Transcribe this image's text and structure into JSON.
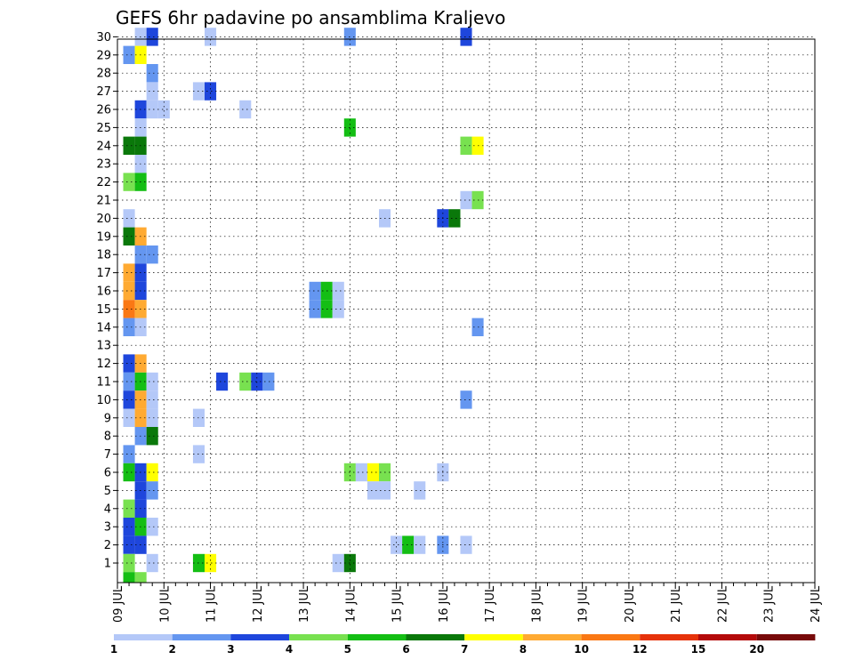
{
  "chart_data": {
    "type": "heatmap",
    "title": "GEFS 6hr padavine po ansamblima Kraljevo",
    "x_labels": [
      "09 JUL",
      "10 JUL",
      "11 JUL",
      "12 JUL",
      "13 JUL",
      "14 JUL",
      "15 JUL",
      "16 JUL",
      "17 JUL",
      "18 JUL",
      "19 JUL",
      "20 JUL",
      "21 JUL",
      "22 JUL",
      "23 JUL",
      "24 JUL"
    ],
    "y_labels": [
      "1",
      "2",
      "3",
      "4",
      "5",
      "6",
      "7",
      "8",
      "9",
      "10",
      "11",
      "12",
      "13",
      "14",
      "15",
      "16",
      "17",
      "18",
      "19",
      "20",
      "21",
      "22",
      "23",
      "24",
      "25",
      "26",
      "27",
      "28",
      "29",
      "30"
    ],
    "ylabel": "",
    "xlabel": "",
    "x_unit": "6-hour step from 09 JUL 00Z",
    "grid": true,
    "colorbar": {
      "labels": [
        "1",
        "2",
        "3",
        "4",
        "5",
        "6",
        "7",
        "8",
        "10",
        "12",
        "15",
        "20"
      ],
      "colors": [
        "#b4c8f8",
        "#6496f0",
        "#1e46dc",
        "#78e150",
        "#14be14",
        "#0a780a",
        "#ffff00",
        "#ffaa32",
        "#fa7814",
        "#e6320a",
        "#b40a0a",
        "#780a0a"
      ]
    },
    "cells": [
      {
        "member": 30,
        "step": 2,
        "value": 1.5
      },
      {
        "member": 30,
        "step": 3,
        "value": 3.5
      },
      {
        "member": 30,
        "step": 8,
        "value": 1.5
      },
      {
        "member": 30,
        "step": 20,
        "value": 2.5
      },
      {
        "member": 30,
        "step": 30,
        "value": 3.5
      },
      {
        "member": 29,
        "step": 1,
        "value": 2.5
      },
      {
        "member": 29,
        "step": 2,
        "value": 7.5
      },
      {
        "member": 28,
        "step": 3,
        "value": 2.5
      },
      {
        "member": 27,
        "step": 3,
        "value": 1.5
      },
      {
        "member": 27,
        "step": 7,
        "value": 1.5
      },
      {
        "member": 27,
        "step": 8,
        "value": 3.5
      },
      {
        "member": 26,
        "step": 2,
        "value": 3.5
      },
      {
        "member": 26,
        "step": 3,
        "value": 1.5
      },
      {
        "member": 26,
        "step": 4,
        "value": 1.5
      },
      {
        "member": 26,
        "step": 11,
        "value": 1.5
      },
      {
        "member": 25,
        "step": 2,
        "value": 1.5
      },
      {
        "member": 25,
        "step": 20,
        "value": 5.5
      },
      {
        "member": 24,
        "step": 1,
        "value": 6.5
      },
      {
        "member": 24,
        "step": 2,
        "value": 6.5
      },
      {
        "member": 24,
        "step": 30,
        "value": 4.5
      },
      {
        "member": 24,
        "step": 31,
        "value": 7.5
      },
      {
        "member": 23,
        "step": 2,
        "value": 1.5
      },
      {
        "member": 22,
        "step": 1,
        "value": 4.5
      },
      {
        "member": 22,
        "step": 2,
        "value": 5.5
      },
      {
        "member": 21,
        "step": 30,
        "value": 1.5
      },
      {
        "member": 21,
        "step": 31,
        "value": 4.5
      },
      {
        "member": 20,
        "step": 1,
        "value": 1.5
      },
      {
        "member": 20,
        "step": 23,
        "value": 1.5
      },
      {
        "member": 20,
        "step": 28,
        "value": 3.5
      },
      {
        "member": 20,
        "step": 29,
        "value": 6.5
      },
      {
        "member": 19,
        "step": 1,
        "value": 6.5
      },
      {
        "member": 19,
        "step": 2,
        "value": 9
      },
      {
        "member": 18,
        "step": 2,
        "value": 2.5
      },
      {
        "member": 18,
        "step": 3,
        "value": 2.5
      },
      {
        "member": 17,
        "step": 1,
        "value": 9
      },
      {
        "member": 17,
        "step": 2,
        "value": 3.5
      },
      {
        "member": 16,
        "step": 1,
        "value": 9
      },
      {
        "member": 16,
        "step": 2,
        "value": 3.5
      },
      {
        "member": 16,
        "step": 17,
        "value": 2.5
      },
      {
        "member": 16,
        "step": 18,
        "value": 5.5
      },
      {
        "member": 16,
        "step": 19,
        "value": 1.5
      },
      {
        "member": 15,
        "step": 1,
        "value": 11
      },
      {
        "member": 15,
        "step": 2,
        "value": 9
      },
      {
        "member": 15,
        "step": 17,
        "value": 2.5
      },
      {
        "member": 15,
        "step": 18,
        "value": 5.5
      },
      {
        "member": 15,
        "step": 19,
        "value": 1.5
      },
      {
        "member": 14,
        "step": 1,
        "value": 2.5
      },
      {
        "member": 14,
        "step": 2,
        "value": 1.5
      },
      {
        "member": 14,
        "step": 31,
        "value": 2.5
      },
      {
        "member": 12,
        "step": 1,
        "value": 3.5
      },
      {
        "member": 12,
        "step": 2,
        "value": 9
      },
      {
        "member": 11,
        "step": 1,
        "value": 2.5
      },
      {
        "member": 11,
        "step": 2,
        "value": 5.5
      },
      {
        "member": 11,
        "step": 3,
        "value": 1.5
      },
      {
        "member": 11,
        "step": 9,
        "value": 3.5
      },
      {
        "member": 11,
        "step": 11,
        "value": 4.5
      },
      {
        "member": 11,
        "step": 12,
        "value": 3.5
      },
      {
        "member": 11,
        "step": 13,
        "value": 2.5
      },
      {
        "member": 10,
        "step": 1,
        "value": 3.5
      },
      {
        "member": 10,
        "step": 2,
        "value": 9
      },
      {
        "member": 10,
        "step": 3,
        "value": 1.5
      },
      {
        "member": 10,
        "step": 30,
        "value": 2.5
      },
      {
        "member": 9,
        "step": 1,
        "value": 1.5
      },
      {
        "member": 9,
        "step": 2,
        "value": 9
      },
      {
        "member": 9,
        "step": 3,
        "value": 1.5
      },
      {
        "member": 9,
        "step": 7,
        "value": 1.5
      },
      {
        "member": 8,
        "step": 2,
        "value": 2.5
      },
      {
        "member": 8,
        "step": 3,
        "value": 6.5
      },
      {
        "member": 7,
        "step": 1,
        "value": 2.5
      },
      {
        "member": 7,
        "step": 7,
        "value": 1.5
      },
      {
        "member": 6,
        "step": 1,
        "value": 5.5
      },
      {
        "member": 6,
        "step": 2,
        "value": 3.5
      },
      {
        "member": 6,
        "step": 3,
        "value": 7.5
      },
      {
        "member": 6,
        "step": 20,
        "value": 4.5
      },
      {
        "member": 6,
        "step": 21,
        "value": 1.5
      },
      {
        "member": 6,
        "step": 22,
        "value": 7.5
      },
      {
        "member": 6,
        "step": 23,
        "value": 4.5
      },
      {
        "member": 6,
        "step": 28,
        "value": 1.5
      },
      {
        "member": 5,
        "step": 2,
        "value": 3.5
      },
      {
        "member": 5,
        "step": 3,
        "value": 2.5
      },
      {
        "member": 5,
        "step": 22,
        "value": 1.5
      },
      {
        "member": 5,
        "step": 23,
        "value": 1.5
      },
      {
        "member": 5,
        "step": 26,
        "value": 1.5
      },
      {
        "member": 4,
        "step": 1,
        "value": 4.5
      },
      {
        "member": 4,
        "step": 2,
        "value": 3.5
      },
      {
        "member": 3,
        "step": 1,
        "value": 3.5
      },
      {
        "member": 3,
        "step": 2,
        "value": 5.5
      },
      {
        "member": 3,
        "step": 3,
        "value": 1.5
      },
      {
        "member": 2,
        "step": 1,
        "value": 3.5
      },
      {
        "member": 2,
        "step": 2,
        "value": 3.5
      },
      {
        "member": 2,
        "step": 24,
        "value": 1.5
      },
      {
        "member": 2,
        "step": 25,
        "value": 5.5
      },
      {
        "member": 2,
        "step": 26,
        "value": 1.5
      },
      {
        "member": 2,
        "step": 28,
        "value": 2.5
      },
      {
        "member": 2,
        "step": 30,
        "value": 1.5
      },
      {
        "member": 1,
        "step": 1,
        "value": 4.5
      },
      {
        "member": 1,
        "step": 3,
        "value": 1.5
      },
      {
        "member": 1,
        "step": 7,
        "value": 5.5
      },
      {
        "member": 1,
        "step": 8,
        "value": 7.5
      },
      {
        "member": 1,
        "step": 19,
        "value": 1.5
      },
      {
        "member": 1,
        "step": 20,
        "value": 6.5
      },
      {
        "member": 0,
        "step": 1,
        "value": 5.5
      },
      {
        "member": 0,
        "step": 2,
        "value": 4.5
      }
    ]
  }
}
